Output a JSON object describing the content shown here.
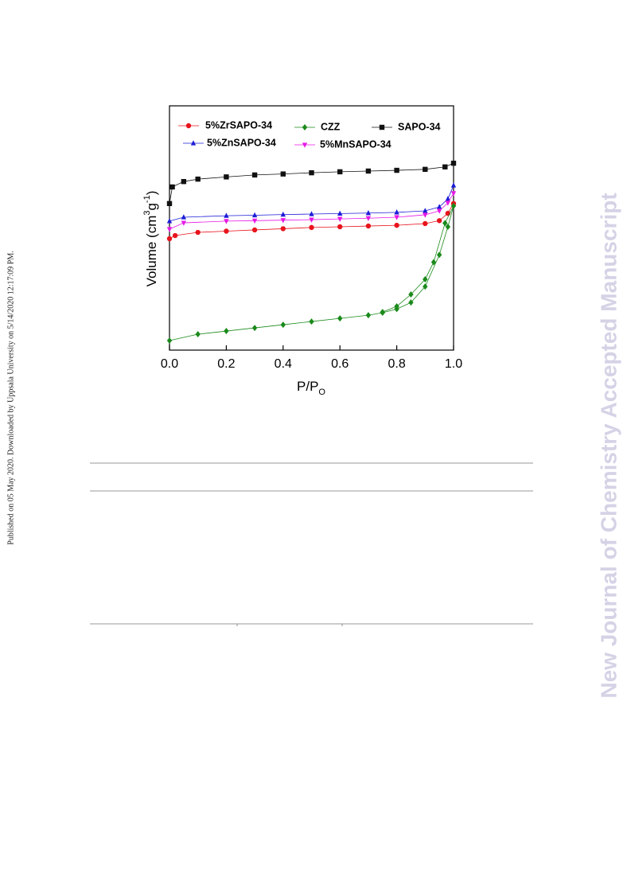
{
  "sidebar": "Published on 05 May 2020. Downloaded by Uppsala University on 5/14/2020 12:17:09 PM.",
  "watermark": "New Journal of Chemistry Accepted Manuscript",
  "chart_data": {
    "type": "line",
    "x_label": [
      "P/P",
      "O"
    ],
    "y_label": [
      "Volume (cm",
      "3",
      "g",
      "-1",
      ")"
    ],
    "xlim": [
      0,
      1
    ],
    "ylim": [
      0,
      100
    ],
    "xticks": [
      {
        "value": 0,
        "label": "0.0"
      },
      0.2,
      0.4,
      0.6,
      0.8,
      {
        "value": 1,
        "label": "1.0"
      }
    ],
    "series": [
      {
        "name": "5%ZrSAPO-34",
        "color": "#e8141c",
        "marker": "circle",
        "x": [
          0,
          0.02,
          0.1,
          0.2,
          0.3,
          0.4,
          0.5,
          0.6,
          0.7,
          0.8,
          0.9,
          0.95,
          0.98,
          1.0
        ],
        "values": [
          45.6,
          46.9,
          48.2,
          48.7,
          49.2,
          49.7,
          50.2,
          50.5,
          50.8,
          51.1,
          51.8,
          53,
          56,
          60
        ]
      },
      {
        "name": "CZZ",
        "color": "#1a8a1a",
        "marker": "diamond",
        "x": [
          0,
          0.1,
          0.2,
          0.3,
          0.4,
          0.5,
          0.6,
          0.7,
          0.75,
          0.8,
          0.85,
          0.9,
          0.95,
          0.98,
          1.0,
          0.97,
          0.93,
          0.9,
          0.85,
          0.8,
          0.75
        ],
        "values": [
          3.9,
          6.5,
          7.8,
          9.1,
          10.4,
          11.7,
          13,
          14.3,
          15.3,
          16.8,
          19.5,
          26,
          39,
          50.5,
          59,
          52,
          36,
          29,
          22.8,
          17.9,
          15.6
        ]
      },
      {
        "name": "SAPO-34",
        "color": "#111111",
        "marker": "square",
        "x": [
          0,
          0.01,
          0.05,
          0.1,
          0.2,
          0.3,
          0.4,
          0.5,
          0.6,
          0.7,
          0.8,
          0.9,
          0.97,
          1.0
        ],
        "values": [
          60,
          66.8,
          69,
          70,
          70.9,
          71.7,
          72.1,
          72.6,
          73,
          73.3,
          73.6,
          74,
          75,
          76.5
        ]
      },
      {
        "name": "5%ZnSAPO-34",
        "color": "#1c1cd6",
        "marker": "triangle",
        "x": [
          0,
          0.05,
          0.2,
          0.3,
          0.4,
          0.5,
          0.6,
          0.7,
          0.8,
          0.9,
          0.95,
          0.98,
          1.0
        ],
        "values": [
          52.8,
          54.4,
          55,
          55.2,
          55.5,
          55.7,
          55.9,
          56.1,
          56.4,
          57,
          58.6,
          61.9,
          67.4
        ]
      },
      {
        "name": "5%MnSAPO-34",
        "color": "#e619e6",
        "marker": "triangle-down",
        "x": [
          0,
          0.05,
          0.2,
          0.3,
          0.4,
          0.5,
          0.6,
          0.7,
          0.8,
          0.9,
          0.95,
          0.98,
          1.0
        ],
        "values": [
          49.5,
          52.1,
          52.8,
          53,
          53.2,
          53.4,
          53.7,
          54,
          54.4,
          55.4,
          57,
          60.3,
          64.2
        ]
      }
    ]
  }
}
